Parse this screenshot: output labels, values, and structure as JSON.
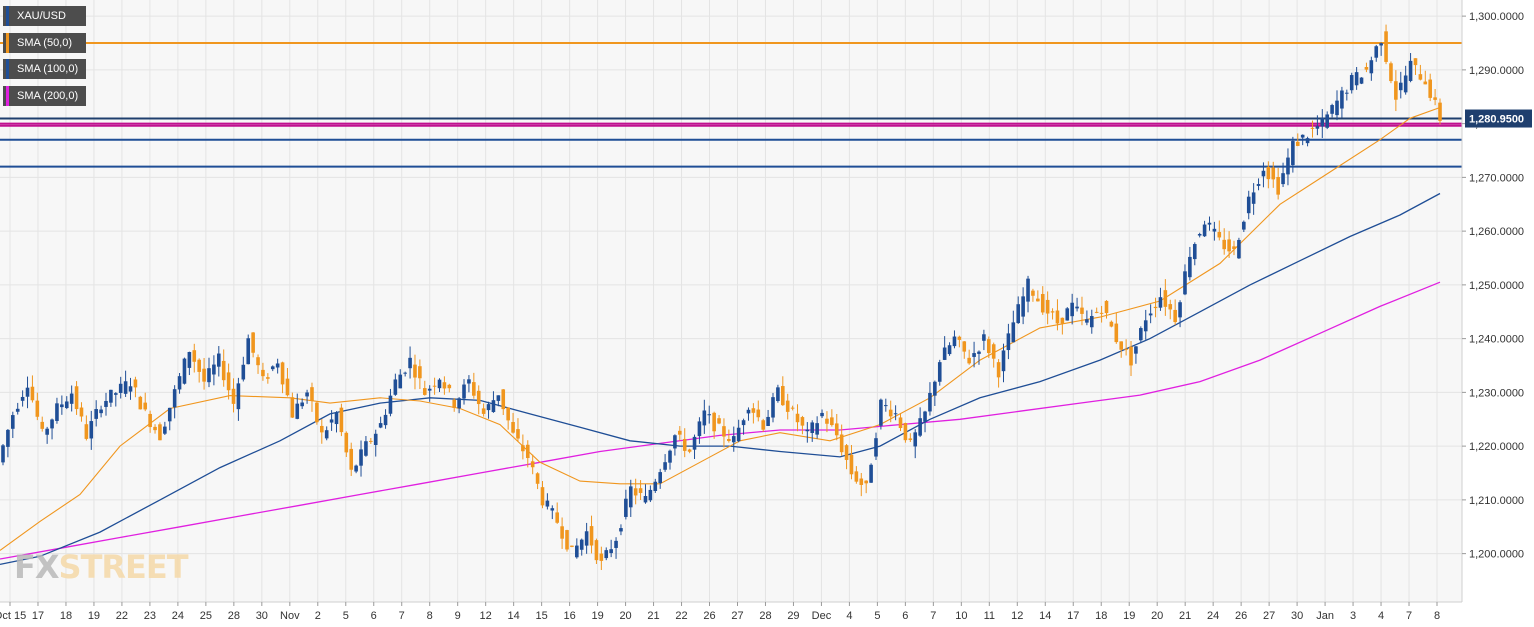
{
  "legend": [
    {
      "label": "XAU/USD",
      "color": "#1f4e96"
    },
    {
      "label": "SMA (50,0)",
      "color": "#f0961e"
    },
    {
      "label": "SMA (100,0)",
      "color": "#1f4e96"
    },
    {
      "label": "SMA (200,0)",
      "color": "#e020e0"
    }
  ],
  "watermark": {
    "fx": "FX",
    "street": "STREET"
  },
  "colors": {
    "up": "#1f4e96",
    "down": "#f0961e",
    "sma50": "#f0961e",
    "sma100": "#1f4e96",
    "sma200": "#e020e0",
    "grid": "#e4e4e4",
    "last_label_bg": "#1f3f6e"
  },
  "chart_data": {
    "type": "candlestick",
    "title": "XAU/USD",
    "ylim": [
      1191.0,
      1303.0
    ],
    "y_ticks": [
      1200,
      1210,
      1220,
      1230,
      1240,
      1250,
      1260,
      1270,
      1280,
      1290,
      1300
    ],
    "y_tick_labels": [
      "1,200.0000",
      "1,210.0000",
      "1,220.0000",
      "1,230.0000",
      "1,240.0000",
      "1,250.0000",
      "1,260.0000",
      "1,270.0000",
      "1,280.0000",
      "1,290.0000",
      "1,300.0000"
    ],
    "x_labels": [
      "Oct 15",
      "17",
      "18",
      "19",
      "22",
      "23",
      "24",
      "25",
      "28",
      "30",
      "Nov",
      "2",
      "5",
      "6",
      "7",
      "8",
      "9",
      "12",
      "14",
      "15",
      "16",
      "19",
      "20",
      "21",
      "22",
      "26",
      "27",
      "28",
      "29",
      "Dec",
      "4",
      "5",
      "6",
      "7",
      "10",
      "11",
      "12",
      "14",
      "17",
      "18",
      "19",
      "20",
      "21",
      "24",
      "26",
      "27",
      "30",
      "Jan",
      "3",
      "4",
      "7",
      "8"
    ],
    "last_price": 1280.95,
    "last_price_label": "1,280.9500",
    "horizontal_lines": [
      {
        "value": 1295.0,
        "color": "#f0961e"
      },
      {
        "value": 1280.95,
        "color": "#1f3f6e"
      },
      {
        "value": 1280.0,
        "color": "#c01090"
      },
      {
        "value": 1279.6,
        "color": "#c01090"
      },
      {
        "value": 1277.0,
        "color": "#1f4e96"
      },
      {
        "value": 1272.0,
        "color": "#1f4e96"
      }
    ],
    "sessions": [
      [
        1217,
        1226
      ],
      [
        1226,
        1232
      ],
      [
        1232,
        1222
      ],
      [
        1222,
        1227
      ],
      [
        1227,
        1230
      ],
      [
        1230,
        1222
      ],
      [
        1222,
        1228
      ],
      [
        1228,
        1230
      ],
      [
        1230,
        1232
      ],
      [
        1232,
        1226
      ],
      [
        1226,
        1222
      ],
      [
        1222,
        1230
      ],
      [
        1230,
        1238
      ],
      [
        1238,
        1232
      ],
      [
        1232,
        1236
      ],
      [
        1236,
        1228
      ],
      [
        1228,
        1240
      ],
      [
        1240,
        1232
      ],
      [
        1232,
        1236
      ],
      [
        1236,
        1226
      ],
      [
        1226,
        1230
      ],
      [
        1230,
        1222
      ],
      [
        1222,
        1226
      ],
      [
        1226,
        1215
      ],
      [
        1215,
        1220
      ],
      [
        1220,
        1224
      ],
      [
        1224,
        1232
      ],
      [
        1232,
        1236
      ],
      [
        1236,
        1230
      ],
      [
        1230,
        1233
      ],
      [
        1233,
        1228
      ],
      [
        1228,
        1232
      ],
      [
        1232,
        1226
      ],
      [
        1226,
        1230
      ],
      [
        1230,
        1222
      ],
      [
        1222,
        1218
      ],
      [
        1218,
        1210
      ],
      [
        1210,
        1206
      ],
      [
        1206,
        1200
      ],
      [
        1200,
        1204
      ],
      [
        1204,
        1198
      ],
      [
        1198,
        1203
      ],
      [
        1203,
        1212
      ],
      [
        1212,
        1210
      ],
      [
        1210,
        1216
      ],
      [
        1216,
        1222
      ],
      [
        1222,
        1219
      ],
      [
        1219,
        1226
      ],
      [
        1226,
        1223
      ],
      [
        1223,
        1221
      ],
      [
        1221,
        1228
      ],
      [
        1228,
        1224
      ],
      [
        1224,
        1230
      ],
      [
        1230,
        1226
      ],
      [
        1226,
        1222
      ],
      [
        1222,
        1226
      ],
      [
        1226,
        1222
      ],
      [
        1222,
        1215
      ],
      [
        1215,
        1212
      ],
      [
        1212,
        1228
      ],
      [
        1228,
        1226
      ],
      [
        1226,
        1220
      ],
      [
        1220,
        1226
      ],
      [
        1226,
        1236
      ],
      [
        1236,
        1240
      ],
      [
        1240,
        1236
      ],
      [
        1236,
        1240
      ],
      [
        1240,
        1234
      ],
      [
        1234,
        1243
      ],
      [
        1243,
        1250
      ],
      [
        1250,
        1246
      ],
      [
        1246,
        1243
      ],
      [
        1243,
        1246
      ],
      [
        1246,
        1243
      ],
      [
        1243,
        1246
      ],
      [
        1246,
        1240
      ],
      [
        1240,
        1236
      ],
      [
        1236,
        1244
      ],
      [
        1244,
        1248
      ],
      [
        1248,
        1244
      ],
      [
        1244,
        1256
      ],
      [
        1256,
        1262
      ],
      [
        1262,
        1258
      ],
      [
        1258,
        1256
      ],
      [
        1256,
        1266
      ],
      [
        1266,
        1272
      ],
      [
        1272,
        1268
      ],
      [
        1268,
        1276
      ],
      [
        1276,
        1278
      ],
      [
        1278,
        1280
      ],
      [
        1280,
        1284
      ],
      [
        1284,
        1288
      ],
      [
        1288,
        1290
      ],
      [
        1290,
        1296
      ],
      [
        1296,
        1285
      ],
      [
        1285,
        1291
      ],
      [
        1291,
        1288
      ],
      [
        1288,
        1281
      ]
    ],
    "sma50": [
      [
        0,
        1200.6
      ],
      [
        40,
        1206.0
      ],
      [
        80,
        1211.0
      ],
      [
        120,
        1220.0
      ],
      [
        170,
        1227.0
      ],
      [
        230,
        1229.4
      ],
      [
        290,
        1229.0
      ],
      [
        330,
        1228.0
      ],
      [
        380,
        1229.0
      ],
      [
        420,
        1228.4
      ],
      [
        460,
        1227.0
      ],
      [
        500,
        1224.0
      ],
      [
        540,
        1217.0
      ],
      [
        580,
        1213.5
      ],
      [
        620,
        1213.0
      ],
      [
        660,
        1213.0
      ],
      [
        700,
        1217.0
      ],
      [
        740,
        1221.0
      ],
      [
        780,
        1222.5
      ],
      [
        830,
        1221.0
      ],
      [
        880,
        1224.0
      ],
      [
        930,
        1229.0
      ],
      [
        980,
        1236.0
      ],
      [
        1040,
        1242.0
      ],
      [
        1100,
        1244.0
      ],
      [
        1160,
        1247.0
      ],
      [
        1220,
        1254.0
      ],
      [
        1280,
        1265.0
      ],
      [
        1330,
        1271.0
      ],
      [
        1380,
        1277.0
      ],
      [
        1410,
        1281.0
      ],
      [
        1440,
        1283.0
      ]
    ],
    "sma100": [
      [
        0,
        1198.0
      ],
      [
        40,
        1199.5
      ],
      [
        100,
        1204.0
      ],
      [
        160,
        1210.0
      ],
      [
        220,
        1216.0
      ],
      [
        280,
        1221.0
      ],
      [
        330,
        1226.0
      ],
      [
        380,
        1228.0
      ],
      [
        430,
        1229.0
      ],
      [
        480,
        1228.5
      ],
      [
        530,
        1226.0
      ],
      [
        580,
        1223.5
      ],
      [
        630,
        1221.0
      ],
      [
        680,
        1220.0
      ],
      [
        730,
        1220.0
      ],
      [
        780,
        1219.0
      ],
      [
        840,
        1218.0
      ],
      [
        880,
        1220.0
      ],
      [
        930,
        1225.0
      ],
      [
        980,
        1229.0
      ],
      [
        1040,
        1232.0
      ],
      [
        1100,
        1236.0
      ],
      [
        1150,
        1240.0
      ],
      [
        1200,
        1245.0
      ],
      [
        1250,
        1250.0
      ],
      [
        1300,
        1254.5
      ],
      [
        1350,
        1259.0
      ],
      [
        1400,
        1263.0
      ],
      [
        1440,
        1267.0
      ]
    ],
    "sma200": [
      [
        0,
        1199.0
      ],
      [
        60,
        1201.0
      ],
      [
        120,
        1203.0
      ],
      [
        180,
        1205.0
      ],
      [
        240,
        1207.0
      ],
      [
        300,
        1209.0
      ],
      [
        360,
        1211.0
      ],
      [
        420,
        1213.0
      ],
      [
        480,
        1215.0
      ],
      [
        540,
        1217.0
      ],
      [
        600,
        1219.0
      ],
      [
        660,
        1220.5
      ],
      [
        720,
        1222.0
      ],
      [
        780,
        1223.0
      ],
      [
        840,
        1223.0
      ],
      [
        900,
        1224.0
      ],
      [
        960,
        1225.0
      ],
      [
        1020,
        1226.5
      ],
      [
        1080,
        1228.0
      ],
      [
        1140,
        1229.5
      ],
      [
        1200,
        1232.0
      ],
      [
        1260,
        1236.0
      ],
      [
        1320,
        1241.0
      ],
      [
        1380,
        1246.0
      ],
      [
        1440,
        1250.5
      ]
    ]
  }
}
